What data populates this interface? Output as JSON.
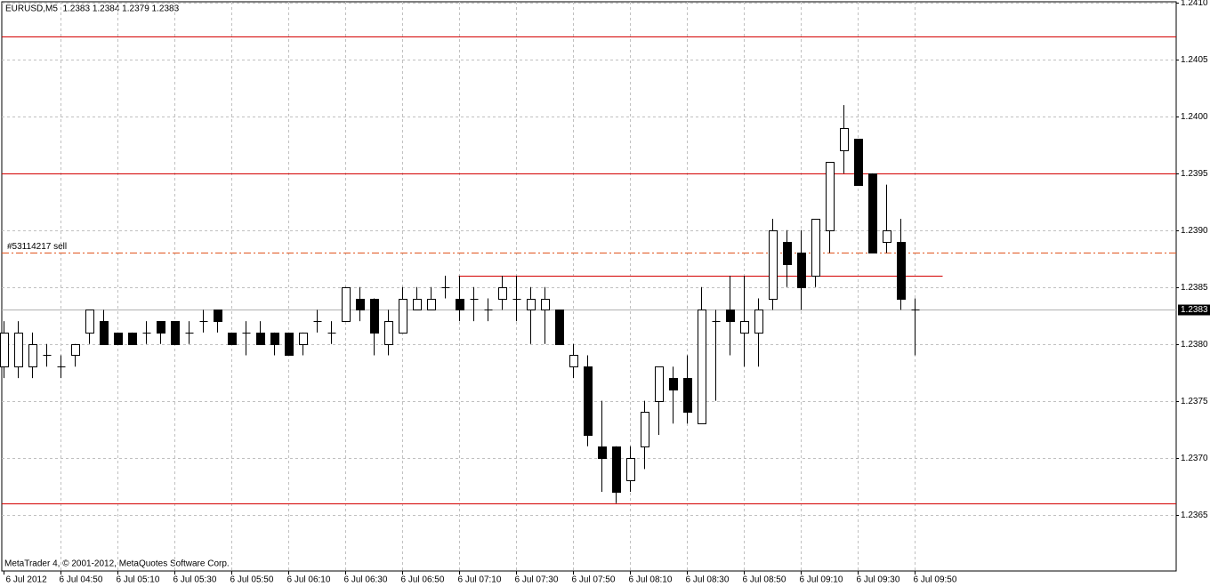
{
  "chart_data": {
    "type": "candlestick",
    "title": "EURUSD,M5  1.2383 1.2384 1.2379 1.2383",
    "footer": "MetaTrader 4, © 2001-2012, MetaQuotes Software Corp.",
    "categories": [
      "6 Jul 2012",
      null,
      null,
      null,
      "6 Jul 04:50",
      null,
      null,
      null,
      "6 Jul 05:10",
      null,
      null,
      null,
      "6 Jul 05:30",
      null,
      null,
      null,
      "6 Jul 05:50",
      null,
      null,
      null,
      "6 Jul 06:10",
      null,
      null,
      null,
      "6 Jul 06:30",
      null,
      null,
      null,
      "6 Jul 06:50",
      null,
      null,
      null,
      "6 Jul 07:10",
      null,
      null,
      null,
      "6 Jul 07:30",
      null,
      null,
      null,
      "6 Jul 07:50",
      null,
      null,
      null,
      "6 Jul 08:10",
      null,
      null,
      null,
      "6 Jul 08:30",
      null,
      null,
      null,
      "6 Jul 08:50",
      null,
      null,
      null,
      "6 Jul 09:10",
      null,
      null,
      null,
      "6 Jul 09:30",
      null,
      null,
      null,
      "6 Jul 09:50"
    ],
    "open": [
      1.2378,
      1.2378,
      1.2378,
      1.2379,
      1.2378,
      1.2379,
      1.2381,
      1.2382,
      1.2381,
      1.2381,
      1.2381,
      1.2382,
      1.2382,
      1.2381,
      1.2382,
      1.2383,
      1.2381,
      1.2381,
      1.2381,
      1.2381,
      1.2381,
      1.238,
      1.2382,
      1.2381,
      1.2382,
      1.2384,
      1.2384,
      1.238,
      1.2381,
      1.2383,
      1.2383,
      1.2385,
      1.2384,
      1.2384,
      1.2383,
      1.2384,
      1.2384,
      1.2383,
      1.2383,
      1.2383,
      1.2378,
      1.2378,
      1.2371,
      1.2371,
      1.2368,
      1.2371,
      1.2375,
      1.2377,
      1.2377,
      1.2373,
      1.2382,
      1.2383,
      1.2381,
      1.2381,
      1.2384,
      1.2389,
      1.2388,
      1.2386,
      1.239,
      1.2397,
      1.2398,
      1.2395,
      1.2389,
      1.2389,
      1.2383
    ],
    "high": [
      1.2382,
      1.2382,
      1.2381,
      1.238,
      1.2379,
      1.238,
      1.2383,
      1.2383,
      1.2381,
      1.2381,
      1.2382,
      1.2382,
      1.2382,
      1.2382,
      1.2383,
      1.2383,
      1.2381,
      1.2382,
      1.2382,
      1.2381,
      1.2381,
      1.2381,
      1.2383,
      1.2382,
      1.2385,
      1.2385,
      1.2384,
      1.2383,
      1.2385,
      1.2385,
      1.2385,
      1.2386,
      1.2386,
      1.2385,
      1.2384,
      1.2386,
      1.2386,
      1.2385,
      1.2385,
      1.2383,
      1.238,
      1.2379,
      1.2375,
      1.2371,
      1.2371,
      1.2375,
      1.2378,
      1.2378,
      1.2379,
      1.2385,
      1.2383,
      1.2386,
      1.2386,
      1.2384,
      1.2391,
      1.239,
      1.239,
      1.2391,
      1.2396,
      1.2401,
      1.2398,
      1.2395,
      1.2394,
      1.2391,
      1.2384
    ],
    "low": [
      1.2377,
      1.2377,
      1.2377,
      1.2378,
      1.2377,
      1.2378,
      1.238,
      1.238,
      1.238,
      1.238,
      1.238,
      1.238,
      1.238,
      1.238,
      1.2381,
      1.2381,
      1.238,
      1.2379,
      1.238,
      1.2379,
      1.2379,
      1.2379,
      1.2381,
      1.238,
      1.2382,
      1.2382,
      1.2379,
      1.2379,
      1.2381,
      1.2383,
      1.2383,
      1.2384,
      1.2382,
      1.2382,
      1.2382,
      1.2383,
      1.2382,
      1.238,
      1.238,
      1.238,
      1.2377,
      1.2371,
      1.2367,
      1.2366,
      1.2367,
      1.2369,
      1.2372,
      1.2373,
      1.2373,
      1.2373,
      1.2375,
      1.2379,
      1.2378,
      1.2378,
      1.2383,
      1.2385,
      1.2383,
      1.2385,
      1.2388,
      1.2395,
      1.2394,
      1.2388,
      1.2388,
      1.2383,
      1.2379
    ],
    "close": [
      1.2381,
      1.2381,
      1.238,
      1.2379,
      1.2378,
      1.238,
      1.2383,
      1.238,
      1.238,
      1.238,
      1.2381,
      1.2381,
      1.238,
      1.2381,
      1.2382,
      1.2382,
      1.238,
      1.2381,
      1.238,
      1.238,
      1.2379,
      1.2381,
      1.2382,
      1.2381,
      1.2385,
      1.2383,
      1.2381,
      1.2382,
      1.2384,
      1.2384,
      1.2384,
      1.2385,
      1.2383,
      1.2384,
      1.2383,
      1.2385,
      1.2384,
      1.2384,
      1.2384,
      1.238,
      1.2379,
      1.2372,
      1.237,
      1.2367,
      1.237,
      1.2374,
      1.2378,
      1.2376,
      1.2374,
      1.2383,
      1.2382,
      1.2382,
      1.2382,
      1.2383,
      1.239,
      1.2387,
      1.2385,
      1.2391,
      1.2396,
      1.2399,
      1.2394,
      1.2388,
      1.239,
      1.2384,
      1.2383
    ],
    "up_color": "#ffffff",
    "down_color": "#000000",
    "ylim": [
      1.236,
      1.241
    ],
    "yticks": [
      {
        "value": 1.241,
        "label": "1.2410"
      },
      1.2405,
      {
        "value": 1.24,
        "label": "1.2400"
      },
      1.2395,
      {
        "value": 1.239,
        "label": "1.2390"
      },
      1.2385,
      {
        "value": 1.238,
        "label": "1.2380"
      },
      1.2375,
      {
        "value": 1.237,
        "label": "1.2370"
      },
      1.2365
    ],
    "grid": true,
    "hlines": [
      {
        "value": 1.2407,
        "color": "#d40000",
        "style": "solid"
      },
      {
        "value": 1.2395,
        "color": "#d40000",
        "style": "solid"
      },
      {
        "value": 1.2366,
        "color": "#d40000",
        "style": "solid"
      },
      {
        "value": 1.2386,
        "color": "#d40000",
        "style": "solid",
        "x_range": [
          32,
          66
        ]
      }
    ],
    "order_line": {
      "value": 1.2388,
      "label": "#53114217 sell",
      "color": "#e0541e"
    },
    "bid": {
      "value": 1.2383,
      "label": "1.2383",
      "color": "#b0b0b0"
    }
  }
}
